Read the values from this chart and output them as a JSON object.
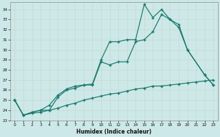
{
  "title": "",
  "xlabel": "Humidex (Indice chaleur)",
  "background_color": "#cde8e8",
  "grid_color": "#b8d8d8",
  "line_color": "#1a7a6e",
  "xlim": [
    -0.5,
    23.5
  ],
  "ylim": [
    23.0,
    34.7
  ],
  "yticks": [
    23,
    24,
    25,
    26,
    27,
    28,
    29,
    30,
    31,
    32,
    33,
    34
  ],
  "xticks": [
    0,
    1,
    2,
    3,
    4,
    5,
    6,
    7,
    8,
    9,
    10,
    11,
    12,
    13,
    14,
    15,
    16,
    17,
    18,
    19,
    20,
    21,
    22,
    23
  ],
  "line1_x": [
    0,
    1,
    2,
    3,
    4,
    5,
    6,
    7,
    8,
    9,
    10,
    11,
    12,
    13,
    14,
    15,
    16,
    17,
    18,
    19,
    20,
    22,
    23
  ],
  "line1_y": [
    25.0,
    23.5,
    23.8,
    24.0,
    24.5,
    25.5,
    26.1,
    26.4,
    26.5,
    26.6,
    29.0,
    30.8,
    30.8,
    31.0,
    31.0,
    34.5,
    33.2,
    34.0,
    33.0,
    32.2,
    30.0,
    27.5,
    26.5
  ],
  "line2_x": [
    0,
    1,
    2,
    3,
    4,
    5,
    6,
    7,
    8,
    9,
    10,
    11,
    12,
    13,
    14,
    15,
    16,
    17,
    18,
    19,
    20,
    22,
    23
  ],
  "line2_y": [
    25.0,
    23.5,
    23.8,
    24.0,
    24.0,
    25.3,
    26.0,
    26.2,
    26.5,
    26.5,
    28.8,
    28.5,
    28.8,
    28.8,
    30.8,
    31.0,
    31.8,
    33.5,
    33.0,
    32.5,
    30.0,
    27.5,
    26.5
  ],
  "line3_x": [
    0,
    1,
    2,
    3,
    4,
    5,
    6,
    7,
    8,
    9,
    10,
    11,
    12,
    13,
    14,
    15,
    16,
    17,
    18,
    19,
    20,
    21,
    22,
    23
  ],
  "line3_y": [
    25.0,
    23.5,
    23.7,
    23.8,
    24.0,
    24.2,
    24.5,
    24.7,
    25.0,
    25.2,
    25.4,
    25.6,
    25.7,
    25.9,
    26.1,
    26.2,
    26.4,
    26.4,
    26.5,
    26.6,
    26.7,
    26.8,
    26.9,
    27.0
  ]
}
